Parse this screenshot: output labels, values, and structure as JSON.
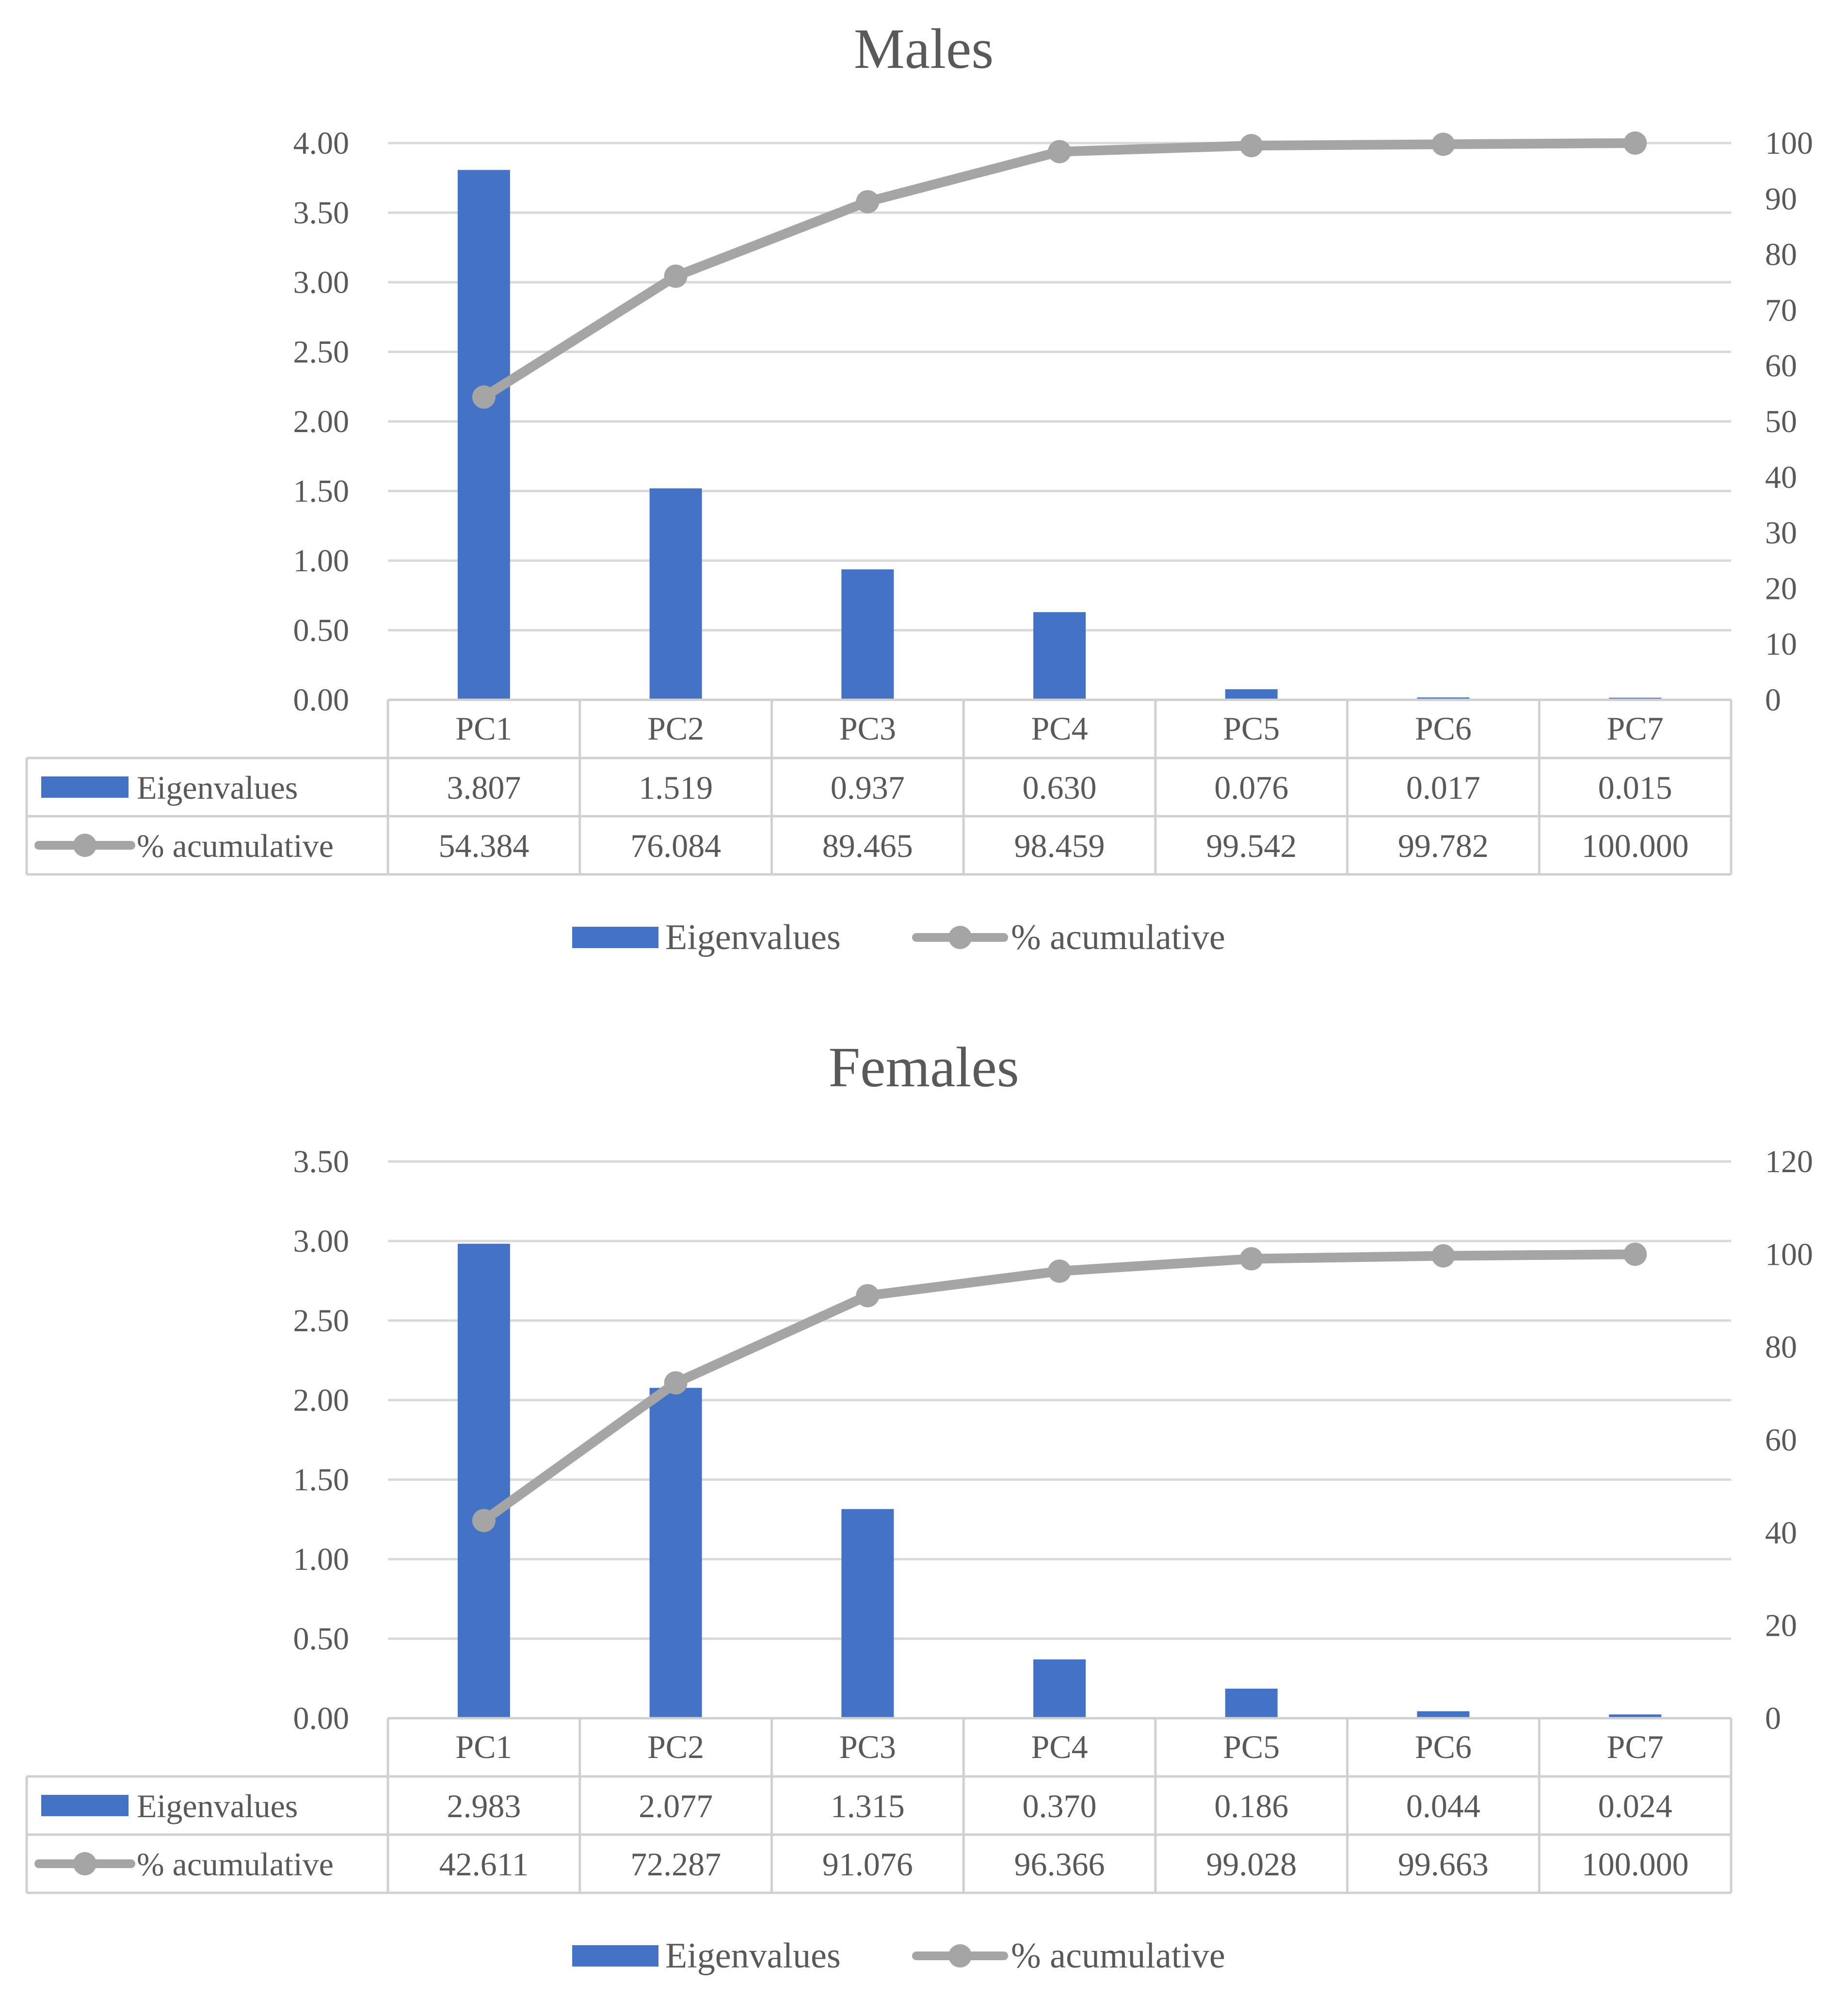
{
  "chart_data": [
    {
      "type": "bar+line",
      "title": "Males",
      "categories": [
        "PC1",
        "PC2",
        "PC3",
        "PC4",
        "PC5",
        "PC6",
        "PC7"
      ],
      "series": [
        {
          "name": "Eigenvalues",
          "kind": "bar",
          "axis": "left",
          "color": "#4472C4",
          "values": [
            3.807,
            1.519,
            0.937,
            0.63,
            0.076,
            0.017,
            0.015
          ],
          "labels": [
            "3.807",
            "1.519",
            "0.937",
            "0.630",
            "0.076",
            "0.017",
            "0.015"
          ]
        },
        {
          "name": "% acumulative",
          "kind": "line",
          "axis": "right",
          "color": "#A5A5A5",
          "values": [
            54.384,
            76.084,
            89.465,
            98.459,
            99.542,
            99.782,
            100.0
          ],
          "labels": [
            "54.384",
            "76.084",
            "89.465",
            "98.459",
            "99.542",
            "99.782",
            "100.000"
          ]
        }
      ],
      "y_left": {
        "min": 0,
        "max": 4,
        "ticks": [
          "0.00",
          "0.50",
          "1.00",
          "1.50",
          "2.00",
          "2.50",
          "3.00",
          "3.50",
          "4.00"
        ]
      },
      "y_right": {
        "min": 0,
        "max": 100,
        "ticks": [
          "0",
          "10",
          "20",
          "30",
          "40",
          "50",
          "60",
          "70",
          "80",
          "90",
          "100"
        ]
      },
      "grid": true,
      "legend": [
        "Eigenvalues",
        "% acumulative"
      ],
      "legend_position": "bottom",
      "data_table": true
    },
    {
      "type": "bar+line",
      "title": "Females",
      "categories": [
        "PC1",
        "PC2",
        "PC3",
        "PC4",
        "PC5",
        "PC6",
        "PC7"
      ],
      "series": [
        {
          "name": "Eigenvalues",
          "kind": "bar",
          "axis": "left",
          "color": "#4472C4",
          "values": [
            2.983,
            2.077,
            1.315,
            0.37,
            0.186,
            0.044,
            0.024
          ],
          "labels": [
            "2.983",
            "2.077",
            "1.315",
            "0.370",
            "0.186",
            "0.044",
            "0.024"
          ]
        },
        {
          "name": "% acumulative",
          "kind": "line",
          "axis": "right",
          "color": "#A5A5A5",
          "values": [
            42.611,
            72.287,
            91.076,
            96.366,
            99.028,
            99.663,
            100.0
          ],
          "labels": [
            "42.611",
            "72.287",
            "91.076",
            "96.366",
            "99.028",
            "99.663",
            "100.000"
          ]
        }
      ],
      "y_left": {
        "min": 0,
        "max": 3.5,
        "ticks": [
          "0.00",
          "0.50",
          "1.00",
          "1.50",
          "2.00",
          "2.50",
          "3.00",
          "3.50"
        ]
      },
      "y_right": {
        "min": 0,
        "max": 120,
        "ticks": [
          "0",
          "20",
          "40",
          "60",
          "80",
          "100",
          "120"
        ]
      },
      "grid": true,
      "legend": [
        "Eigenvalues",
        "% acumulative"
      ],
      "legend_position": "bottom",
      "data_table": true
    }
  ]
}
